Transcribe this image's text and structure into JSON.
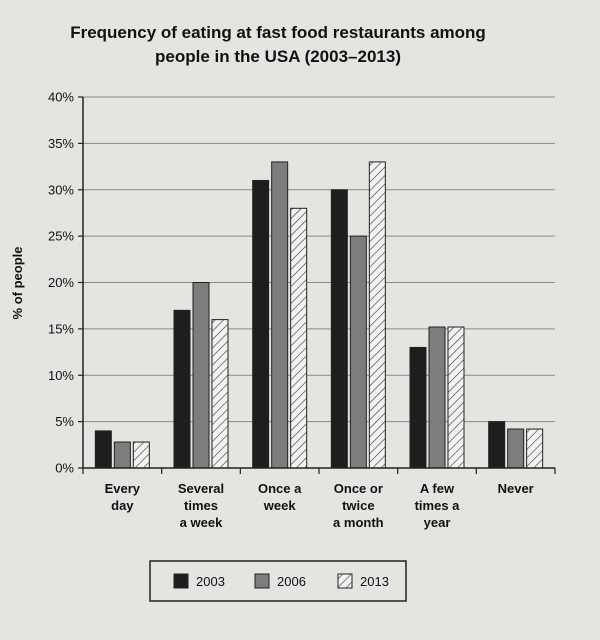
{
  "chart_data": {
    "type": "bar",
    "title_lines": [
      "Frequency of eating at fast food restaurants among",
      "people in the USA (2003–2013)"
    ],
    "ylabel": "% of people",
    "xlabel": "",
    "ylim": [
      0,
      40
    ],
    "yticks": [
      0,
      5,
      10,
      15,
      20,
      25,
      30,
      35,
      40
    ],
    "ytick_labels": [
      "0%",
      "5%",
      "10%",
      "15%",
      "20%",
      "25%",
      "30%",
      "35%",
      "40%"
    ],
    "grid": true,
    "legend_position": "bottom-center",
    "categories": [
      [
        "Every",
        "day"
      ],
      [
        "Several",
        "times",
        "a week"
      ],
      [
        "Once a",
        "week"
      ],
      [
        "Once or",
        "twice",
        "a month"
      ],
      [
        "A few",
        "times a",
        "year"
      ],
      [
        "Never"
      ]
    ],
    "series": [
      {
        "name": "2003",
        "pattern": "solid-black",
        "values": [
          4,
          17,
          31,
          30,
          13,
          5
        ]
      },
      {
        "name": "2006",
        "pattern": "solid-gray",
        "values": [
          2.8,
          20,
          33,
          25,
          15.2,
          4.2
        ]
      },
      {
        "name": "2013",
        "pattern": "hatched",
        "values": [
          2.8,
          16,
          28,
          33,
          15.2,
          4.2
        ]
      }
    ],
    "colors": {
      "black": "#1e1e1e",
      "gray": "#7d7d7d",
      "hatch_fill": "#f2f2f2",
      "grid": "#8a8a8a"
    }
  }
}
